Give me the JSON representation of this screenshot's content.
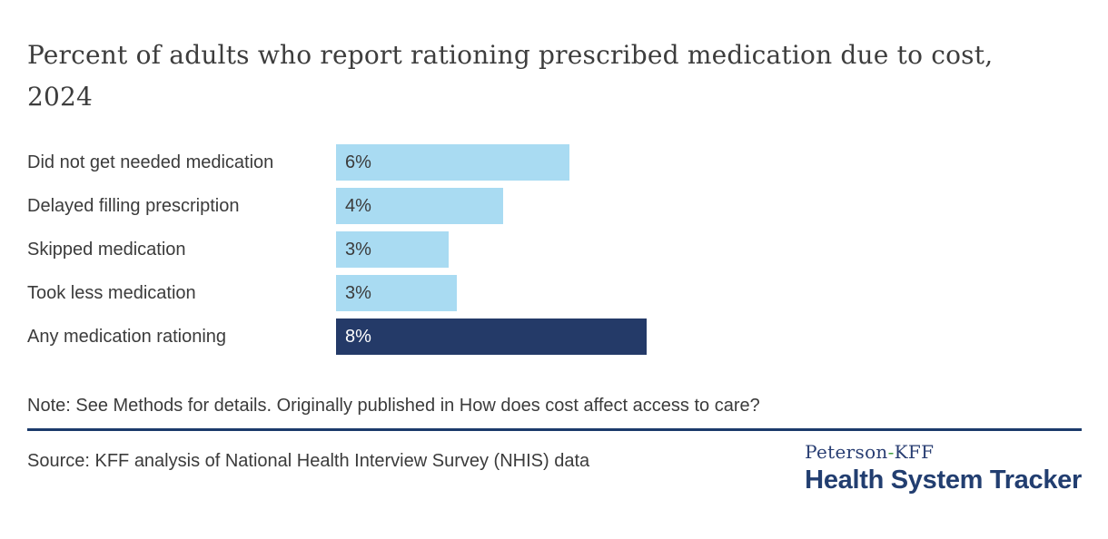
{
  "title": "Percent of adults who report rationing prescribed medication due to cost, 2024",
  "chart_data": {
    "type": "bar",
    "orientation": "horizontal",
    "title": "Percent of adults who report rationing prescribed medication due to cost, 2024",
    "categories": [
      "Did not get needed medication",
      "Delayed filling prescription",
      "Skipped medication",
      "Took less medication",
      "Any medication rationing"
    ],
    "values": [
      6,
      4,
      3,
      3,
      8
    ],
    "value_labels": [
      "6%",
      "4%",
      "3%",
      "3%",
      "8%"
    ],
    "estimated_precise_values": [
      6.0,
      4.3,
      2.9,
      3.1,
      8.0
    ],
    "highlight_index": 4,
    "xlabel": "",
    "ylabel": "",
    "xlim": [
      0,
      8.5
    ],
    "grid": false,
    "legend": "none",
    "value_label_position": "inside-start"
  },
  "note": "Note: See Methods for details. Originally published in How does cost affect access to care?",
  "source": "Source: KFF analysis of National Health Interview Survey (NHIS) data",
  "logo": {
    "brand_top_prefix": "Peterson",
    "brand_top_hyphen": "-",
    "brand_top_suffix": "KFF",
    "brand_bottom": "Health System Tracker"
  },
  "colors": {
    "light_blue": "#a9dbf2",
    "navy": "#243a68",
    "divider_navy": "#1b3a6b",
    "logo_navy": "#223e70",
    "logo_green": "#3f9c3f",
    "text": "#3b3b3b",
    "bar_value_on_navy": "#ffffff"
  }
}
